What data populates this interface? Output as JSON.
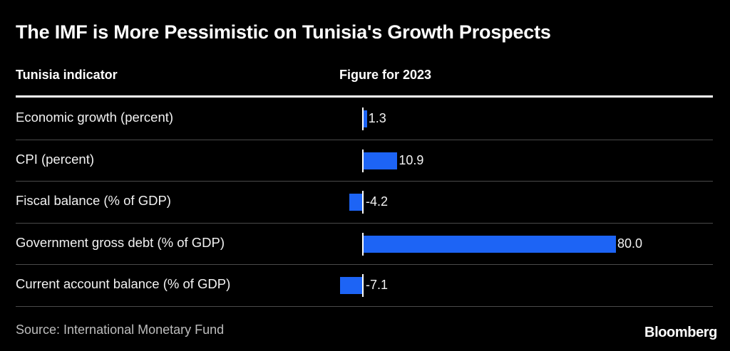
{
  "title": "The IMF is More Pessimistic on Tunisia's Growth Prospects",
  "columns": {
    "indicator": "Tunisia indicator",
    "figure": "Figure for 2023"
  },
  "chart_data": {
    "type": "bar",
    "orientation": "horizontal",
    "title": "The IMF is More Pessimistic on Tunisia's Growth Prospects",
    "categories": [
      "Economic growth (percent)",
      "CPI (percent)",
      "Fiscal balance (% of GDP)",
      "Government gross debt (% of GDP)",
      "Current account balance (% of GDP)"
    ],
    "values": [
      1.3,
      10.9,
      -4.2,
      80.0,
      -7.1
    ],
    "value_labels": [
      "1.3",
      "10.9",
      "-4.2",
      "80.0",
      "-7.1"
    ],
    "bar_color": "#1d64f5"
  },
  "source": "Source: International Monetary Fund",
  "brand": "Bloomberg"
}
